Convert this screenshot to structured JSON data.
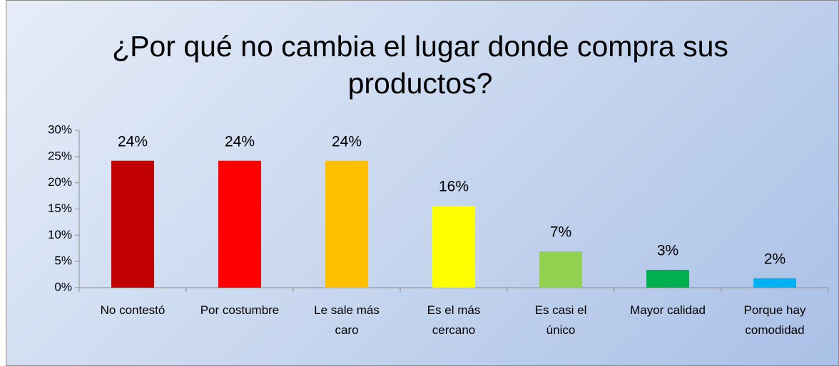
{
  "chart_data": {
    "type": "bar",
    "title": "¿Por qué no cambia el lugar donde compra sus productos?",
    "categories": [
      "No contestó",
      "Por costumbre",
      "Le sale más caro",
      "Es el más cercano",
      "Es casi el único",
      "Mayor calidad",
      "Porque hay comodidad"
    ],
    "values": [
      24.2,
      24.2,
      24.2,
      15.6,
      6.9,
      3.4,
      1.8
    ],
    "value_labels": [
      "24%",
      "24%",
      "24%",
      "16%",
      "7%",
      "3%",
      "2%"
    ],
    "colors": [
      "#c00000",
      "#ff0000",
      "#ffc000",
      "#ffff00",
      "#92d050",
      "#00b050",
      "#00b0f0"
    ],
    "ylim": [
      0,
      30
    ],
    "yticks": [
      {
        "value": 0,
        "label": "0%"
      },
      {
        "value": 5,
        "label": "5%"
      },
      {
        "value": 10,
        "label": "10%"
      },
      {
        "value": 15,
        "label": "15%"
      },
      {
        "value": 20,
        "label": "20%"
      },
      {
        "value": 25,
        "label": "25%"
      },
      {
        "value": 30,
        "label": "30%"
      }
    ]
  }
}
